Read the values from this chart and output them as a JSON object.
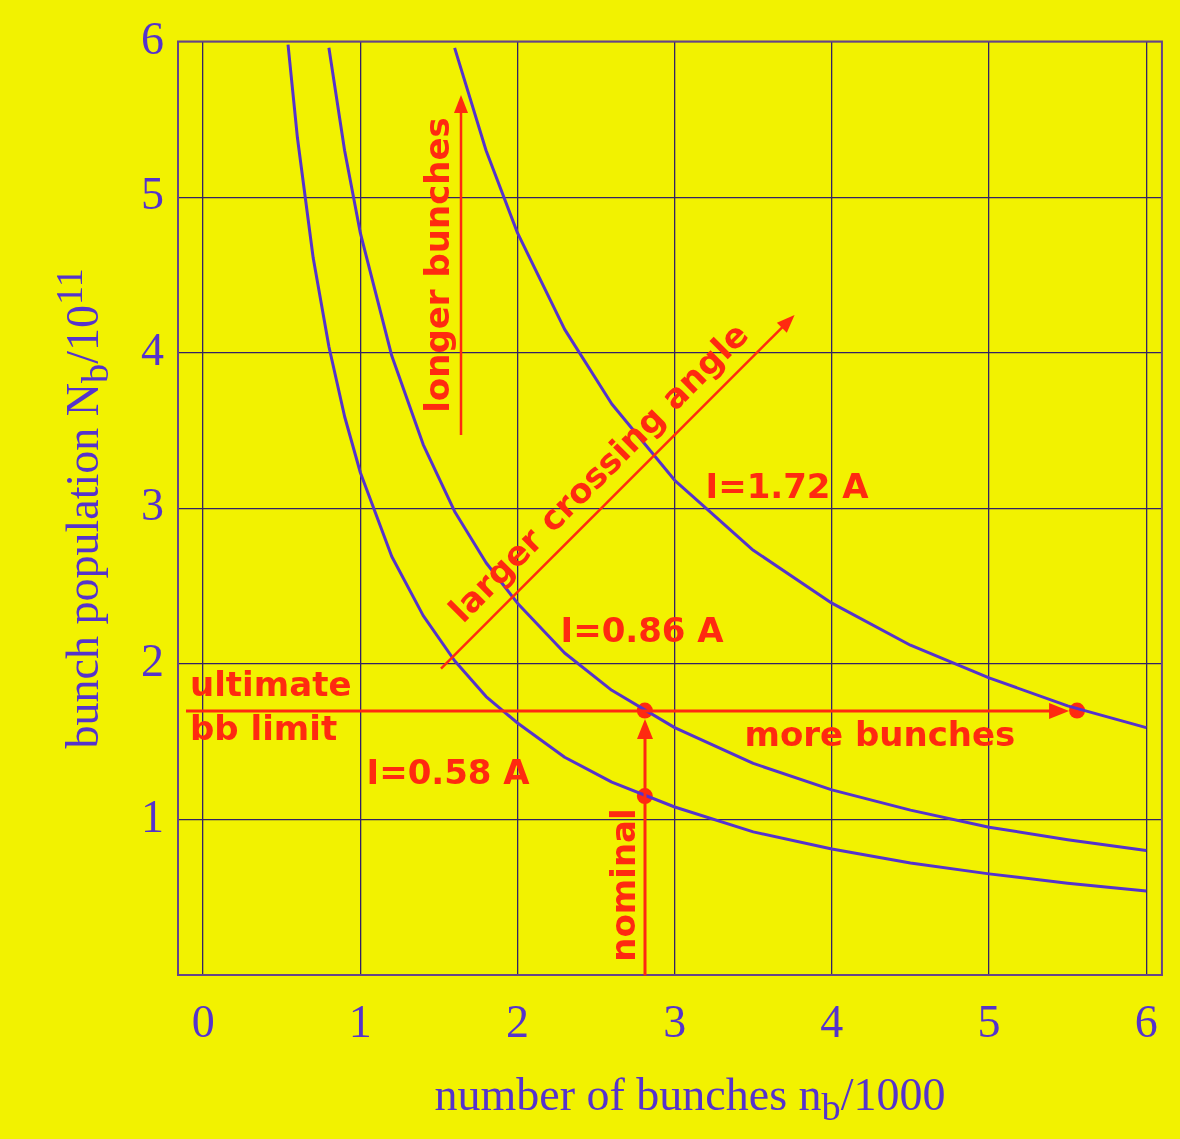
{
  "chart_data": {
    "type": "line",
    "xlabel": "number of bunches n$_{b}$/1000",
    "ylabel": "bunch population N$_{b}$/10$^{11}$",
    "xlim": [
      -0.16,
      6.1
    ],
    "ylim": [
      0,
      6
    ],
    "xticks": [
      0,
      1,
      2,
      3,
      4,
      5,
      6
    ],
    "yticks": [
      1,
      2,
      3,
      4,
      5,
      6
    ],
    "grid": true,
    "legend": false,
    "series": [
      {
        "color": "#5533cc",
        "x": [
          0.54,
          0.6,
          0.7,
          0.8,
          0.9,
          1.0,
          1.2,
          1.4,
          1.6,
          1.8,
          2.0,
          2.3,
          2.6,
          3.0,
          3.5,
          4.0,
          4.5,
          5.0,
          5.5,
          6.0
        ],
        "values": [
          5.98,
          5.38,
          4.61,
          4.04,
          3.59,
          3.23,
          2.69,
          2.31,
          2.02,
          1.79,
          1.62,
          1.4,
          1.24,
          1.08,
          0.92,
          0.81,
          0.72,
          0.65,
          0.59,
          0.54
        ]
      },
      {
        "color": "#5533cc",
        "x": [
          0.8,
          0.9,
          1.0,
          1.2,
          1.4,
          1.6,
          1.8,
          2.0,
          2.3,
          2.6,
          3.0,
          3.5,
          4.0,
          4.5,
          5.0,
          5.5,
          6.0
        ],
        "values": [
          5.96,
          5.3,
          4.77,
          3.98,
          3.41,
          2.98,
          2.65,
          2.39,
          2.07,
          1.83,
          1.59,
          1.36,
          1.19,
          1.06,
          0.95,
          0.87,
          0.8
        ]
      },
      {
        "color": "#5533cc",
        "x": [
          1.6,
          1.8,
          2.0,
          2.3,
          2.6,
          3.0,
          3.5,
          4.0,
          4.5,
          5.0,
          5.5,
          6.0
        ],
        "values": [
          5.96,
          5.3,
          4.77,
          4.15,
          3.67,
          3.18,
          2.73,
          2.39,
          2.12,
          1.91,
          1.73,
          1.59
        ]
      },
      {
        "type": "scatter",
        "color": "#ff2a10",
        "marker": "circle",
        "x": [
          2.81,
          2.81,
          5.56
        ],
        "values": [
          1.15,
          1.7,
          1.7
        ]
      }
    ],
    "annotations": [
      "longer bunches",
      "larger crossing angle",
      "I=0.58 A",
      "I=0.86 A",
      "I=1.72 A",
      "more bunches"
    ],
    "ref_lines": [
      {
        "axis": "y",
        "value": 1.7,
        "label": "ultimate bb limit",
        "color": "#ff2a10"
      },
      {
        "axis": "x",
        "value": 2.81,
        "label": "nominal",
        "color": "#ff2a10"
      }
    ]
  }
}
